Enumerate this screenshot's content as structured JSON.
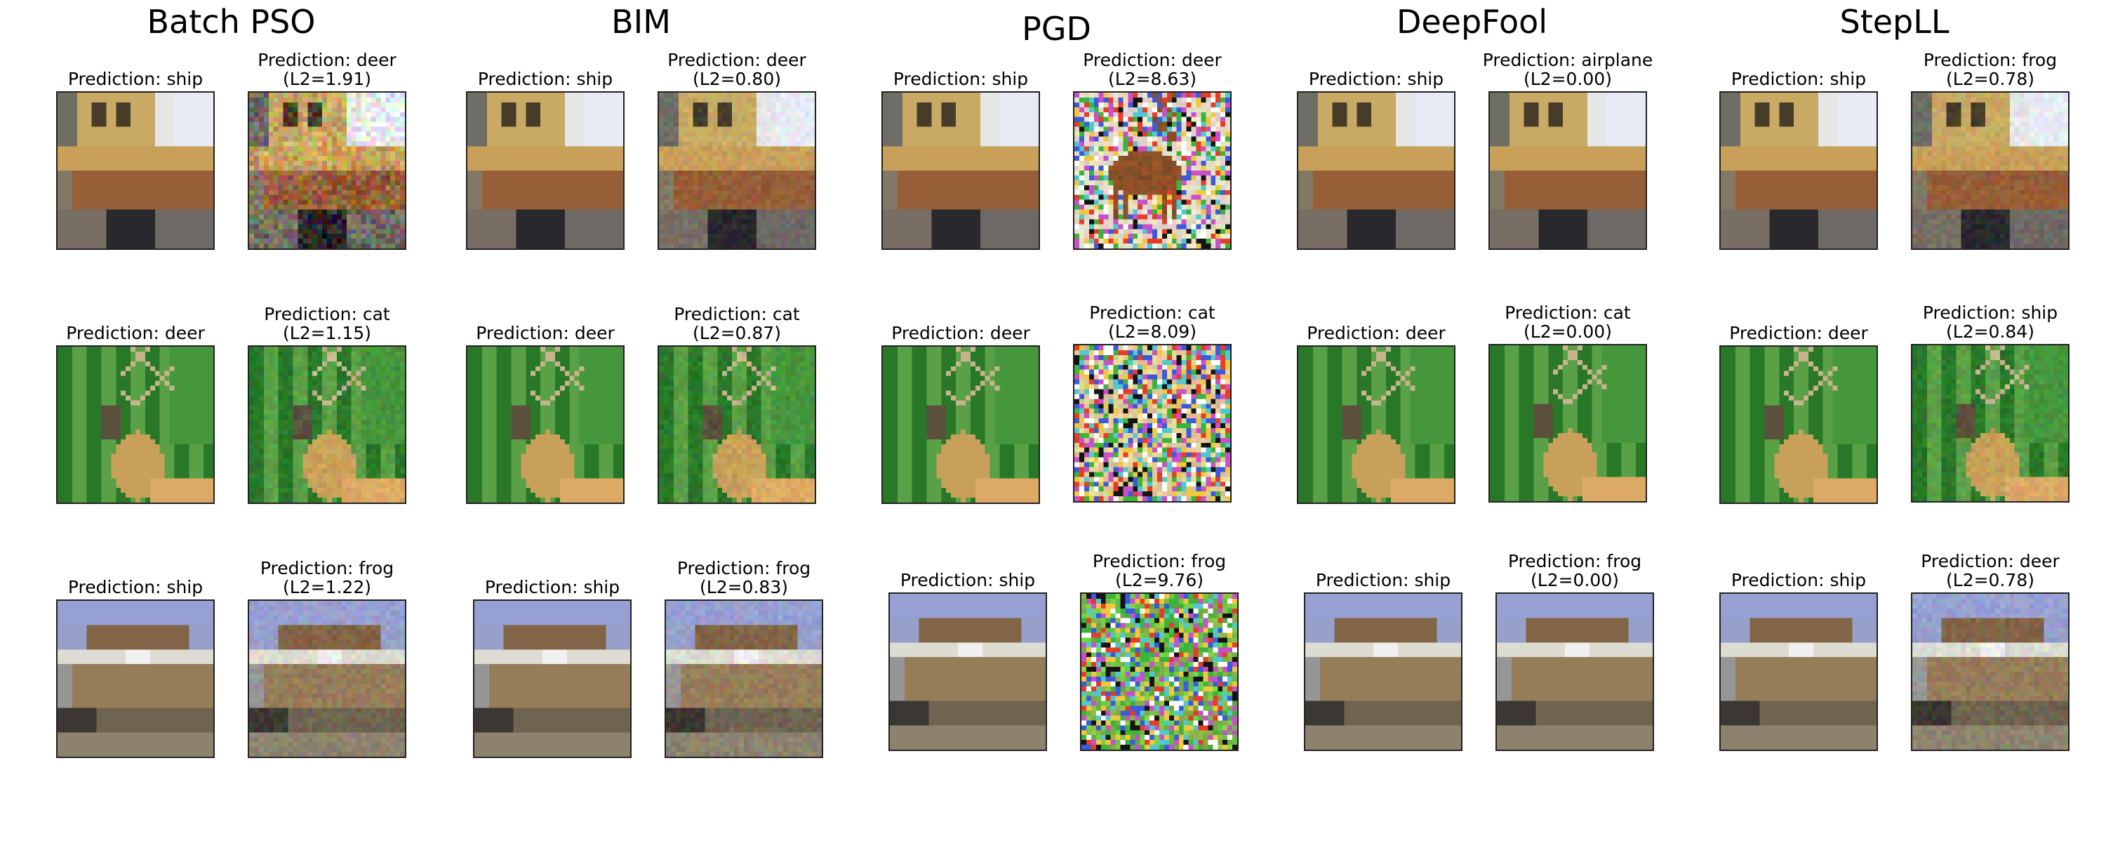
{
  "methods": [
    {
      "title": "Batch PSO",
      "rows": [
        {
          "original": {
            "caption": "Prediction: ship",
            "scene": "ship1"
          },
          "adversarial": {
            "caption": "Prediction: deer",
            "l2": "(L2=1.91)",
            "scene": "ship1",
            "noise": "light"
          }
        },
        {
          "original": {
            "caption": "Prediction: deer",
            "scene": "deer"
          },
          "adversarial": {
            "caption": "Prediction: cat",
            "l2": "(L2=1.15)",
            "scene": "deer",
            "noise": "faint"
          }
        },
        {
          "original": {
            "caption": "Prediction: ship",
            "scene": "ship2"
          },
          "adversarial": {
            "caption": "Prediction: frog",
            "l2": "(L2=1.22)",
            "scene": "ship2",
            "noise": "faint"
          }
        }
      ]
    },
    {
      "title": "BIM",
      "rows": [
        {
          "original": {
            "caption": "Prediction: ship",
            "scene": "ship1"
          },
          "adversarial": {
            "caption": "Prediction: deer",
            "l2": "(L2=0.80)",
            "scene": "ship1",
            "noise": "faint"
          }
        },
        {
          "original": {
            "caption": "Prediction: deer",
            "scene": "deer"
          },
          "adversarial": {
            "caption": "Prediction: cat",
            "l2": "(L2=0.87)",
            "scene": "deer",
            "noise": "faint"
          }
        },
        {
          "original": {
            "caption": "Prediction: ship",
            "scene": "ship2"
          },
          "adversarial": {
            "caption": "Prediction: frog",
            "l2": "(L2=0.83)",
            "scene": "ship2",
            "noise": "faint"
          }
        }
      ]
    },
    {
      "title": "PGD",
      "rows": [
        {
          "original": {
            "caption": "Prediction: ship",
            "scene": "ship1"
          },
          "adversarial": {
            "caption": "Prediction: deer",
            "l2": "(L2=8.63)",
            "scene": "noise-deer",
            "noise": "heavy"
          }
        },
        {
          "original": {
            "caption": "Prediction: deer",
            "scene": "deer"
          },
          "adversarial": {
            "caption": "Prediction: cat",
            "l2": "(L2=8.09)",
            "scene": "noise-cat",
            "noise": "heavy"
          }
        },
        {
          "original": {
            "caption": "Prediction: ship",
            "scene": "ship2"
          },
          "adversarial": {
            "caption": "Prediction: frog",
            "l2": "(L2=9.76)",
            "scene": "noise-frog",
            "noise": "heavy"
          }
        }
      ]
    },
    {
      "title": "DeepFool",
      "rows": [
        {
          "original": {
            "caption": "Prediction: ship",
            "scene": "ship1"
          },
          "adversarial": {
            "caption": "Prediction: airplane",
            "l2": "(L2=0.00)",
            "scene": "ship1",
            "noise": "none"
          }
        },
        {
          "original": {
            "caption": "Prediction: deer",
            "scene": "deer"
          },
          "adversarial": {
            "caption": "Prediction: cat",
            "l2": "(L2=0.00)",
            "scene": "deer",
            "noise": "none"
          }
        },
        {
          "original": {
            "caption": "Prediction: ship",
            "scene": "ship2"
          },
          "adversarial": {
            "caption": "Prediction: frog",
            "l2": "(L2=0.00)",
            "scene": "ship2",
            "noise": "none"
          }
        }
      ]
    },
    {
      "title": "StepLL",
      "rows": [
        {
          "original": {
            "caption": "Prediction: ship",
            "scene": "ship1"
          },
          "adversarial": {
            "caption": "Prediction: frog",
            "l2": "(L2=0.78)",
            "scene": "ship1",
            "noise": "faint"
          }
        },
        {
          "original": {
            "caption": "Prediction: deer",
            "scene": "deer"
          },
          "adversarial": {
            "caption": "Prediction: ship",
            "l2": "(L2=0.84)",
            "scene": "deer",
            "noise": "faint"
          }
        },
        {
          "original": {
            "caption": "Prediction: ship",
            "scene": "ship2"
          },
          "adversarial": {
            "caption": "Prediction: deer",
            "l2": "(L2=0.78)",
            "scene": "ship2",
            "noise": "faint"
          }
        }
      ]
    }
  ]
}
